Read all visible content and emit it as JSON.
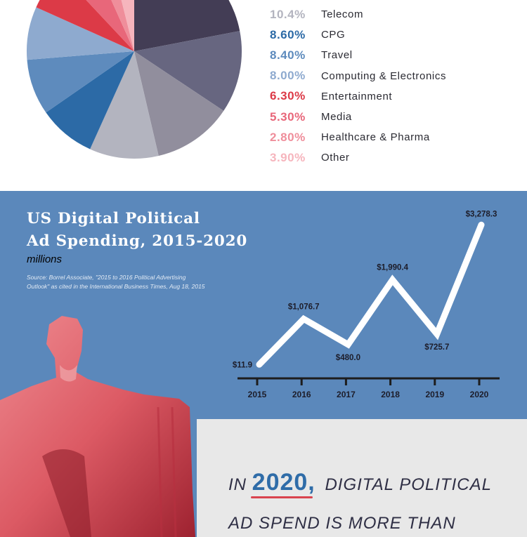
{
  "chart_data": [
    {
      "type": "pie",
      "slices": [
        {
          "label": "",
          "value": 22.0,
          "color": "#433d55"
        },
        {
          "label": "",
          "value": 12.4,
          "color": "#676680"
        },
        {
          "label": "",
          "value": 12.0,
          "color": "#918e9d"
        },
        {
          "label": "Telecom",
          "pct": "10.4%",
          "value": 10.4,
          "color": "#b3b4bf"
        },
        {
          "label": "CPG",
          "pct": "8.60%",
          "value": 8.6,
          "color": "#2c6aa6"
        },
        {
          "label": "Travel",
          "pct": "8.40%",
          "value": 8.4,
          "color": "#5e8bbd"
        },
        {
          "label": "Computing & Electronics",
          "pct": "8.00%",
          "value": 8.0,
          "color": "#8eaacf"
        },
        {
          "label": "Entertainment",
          "pct": "6.30%",
          "value": 6.3,
          "color": "#dc3a47"
        },
        {
          "label": "Media",
          "pct": "5.30%",
          "value": 5.3,
          "color": "#e8677a"
        },
        {
          "label": "Healthcare & Pharma",
          "pct": "2.80%",
          "value": 2.8,
          "color": "#ef8e9b"
        },
        {
          "label": "Other",
          "pct": "3.90%",
          "value": 3.9,
          "color": "#f6b5bd"
        }
      ],
      "legend_placement": "right"
    },
    {
      "type": "line",
      "title_line1": "US Digital Political",
      "title_line2": "Ad Spending, 2015-2020",
      "subtitle": "millions",
      "source_line1": "Source: Borrel Associate, \"2015 to 2016 Political Advertising",
      "source_line2": "Outlook\" as cited in the International Business Times, Aug 18, 2015",
      "x": [
        "2015",
        "2016",
        "2017",
        "2018",
        "2019",
        "2020"
      ],
      "values": [
        11.9,
        1076.7,
        480.0,
        1990.4,
        725.7,
        3278.3
      ],
      "labels": [
        "$11.9",
        "$1,076.7",
        "$480.0",
        "$1,990.4",
        "$725.7",
        "$3,278.3"
      ],
      "line_color": "#ffffff",
      "grid": false
    }
  ],
  "callout": {
    "prefix": "IN",
    "year": "2020,",
    "line1_rest": "DIGITAL POLITICAL",
    "line2": "AD SPEND IS MORE THAN"
  },
  "colors": {
    "blue_bg": "#5b88bb",
    "gray_bg": "#e8e8e8",
    "statue": "#e0646c"
  }
}
